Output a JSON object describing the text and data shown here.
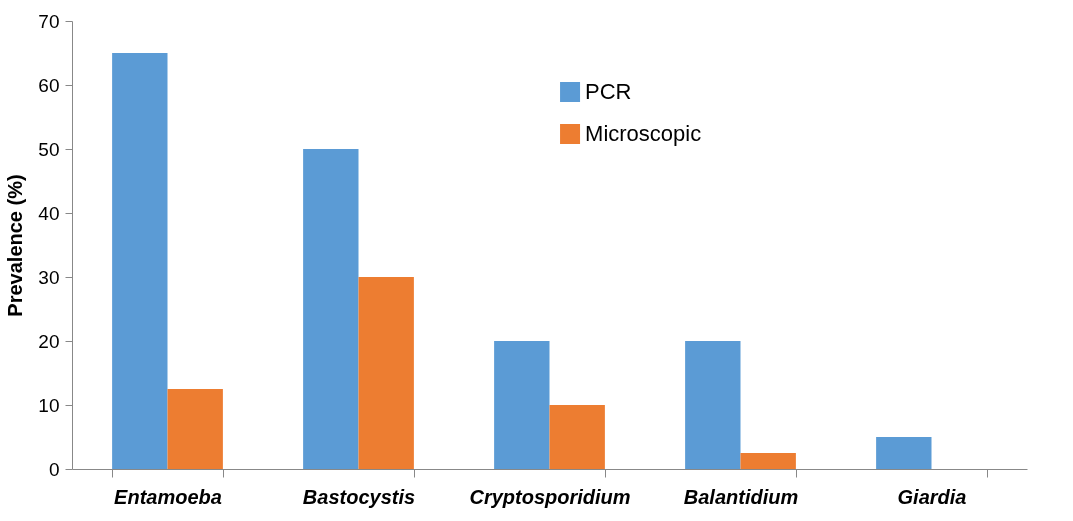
{
  "chart_data": {
    "type": "bar",
    "ylabel": "Prevalence (%)",
    "categories": [
      "Entamoeba",
      "Bastocystis",
      "Cryptosporidium",
      "Balantidium",
      "Giardia"
    ],
    "series": [
      {
        "name": "PCR",
        "color": "#5b9bd5",
        "values": [
          65,
          50,
          20,
          20,
          5
        ]
      },
      {
        "name": "Microscopic",
        "color": "#ed7d31",
        "values": [
          12.5,
          30,
          10,
          2.5,
          0
        ]
      }
    ],
    "ylim": [
      0,
      70
    ],
    "yticks": [
      0,
      10,
      20,
      30,
      40,
      50,
      60,
      70
    ],
    "grid": false,
    "legend": "top right"
  }
}
